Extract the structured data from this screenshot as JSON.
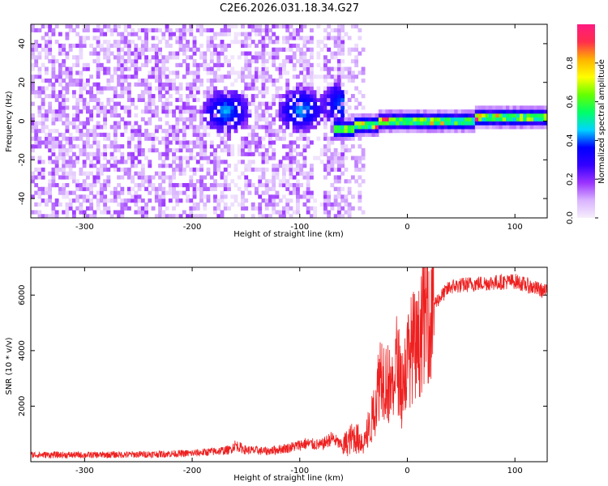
{
  "title": "C2E6.2026.031.18.34.G27",
  "chart_data": [
    {
      "type": "heatmap",
      "name": "spectrogram",
      "xlabel": "Height of straight line (km)",
      "ylabel": "Frequency (Hz)",
      "xlim": [
        -350,
        130
      ],
      "ylim": [
        -50,
        50
      ],
      "xticks": [
        "-300",
        "-200",
        "-100",
        "0",
        "100"
      ],
      "xtick_values": [
        -300,
        -200,
        -100,
        0,
        100
      ],
      "yticks": [
        "-40",
        "-20",
        "0",
        "20",
        "40"
      ],
      "ytick_values": [
        -40,
        -20,
        0,
        20,
        40
      ],
      "colorbar": {
        "label": "Normalized spectral amplitude",
        "range": [
          0,
          1
        ],
        "ticks": [
          "0.0",
          "0.2",
          "0.4",
          "0.6",
          "0.8"
        ],
        "tick_values": [
          0.0,
          0.2,
          0.4,
          0.6,
          0.8
        ],
        "colors": [
          "#f6effc",
          "#d9b3ff",
          "#9a33ff",
          "#3300ff",
          "#0000ff",
          "#00d5ff",
          "#00ff66",
          "#66ff00",
          "#ffff00",
          "#ffb300",
          "#ff2d4c",
          "#ff1a80"
        ]
      },
      "features": {
        "noise_region_x": [
          -350,
          -60
        ],
        "signal_band_center_hz": [
          {
            "x": -65,
            "f": -4
          },
          {
            "x": -50,
            "f": -3
          },
          {
            "x": -30,
            "f": -1
          },
          {
            "x": 0,
            "f": 0
          },
          {
            "x": 60,
            "f": 1
          },
          {
            "x": 130,
            "f": 2
          }
        ],
        "clusters": [
          {
            "x": -170,
            "f": 4
          },
          {
            "x": -100,
            "f": 5
          },
          {
            "x": -60,
            "f": 8
          }
        ],
        "gaps_x": [
          -162,
          -85
        ]
      }
    },
    {
      "type": "line",
      "name": "snr",
      "xlabel": "Height of straight line (km)",
      "ylabel": "SNR (10 * v/v)",
      "xlim": [
        -350,
        130
      ],
      "ylim": [
        0,
        7000
      ],
      "xticks": [
        "-300",
        "-200",
        "-100",
        "0",
        "100"
      ],
      "xtick_values": [
        -300,
        -200,
        -100,
        0,
        100
      ],
      "yticks": [
        "2000",
        "4000",
        "6000"
      ],
      "ytick_values": [
        2000,
        4000,
        6000
      ],
      "color": "#ee2020",
      "series": [
        {
          "name": "SNR",
          "x": [
            -350,
            -300,
            -250,
            -200,
            -165,
            -160,
            -150,
            -130,
            -110,
            -95,
            -80,
            -70,
            -60,
            -50,
            -40,
            -35,
            -30,
            -25,
            -20,
            -15,
            -10,
            -5,
            0,
            5,
            10,
            15,
            20,
            30,
            40,
            60,
            80,
            100,
            115,
            130
          ],
          "y": [
            250,
            240,
            260,
            300,
            420,
            600,
            420,
            380,
            500,
            650,
            600,
            850,
            550,
            900,
            700,
            1200,
            2000,
            3300,
            3000,
            2600,
            3600,
            2800,
            3600,
            4200,
            4000,
            5300,
            5500,
            5900,
            6300,
            6400,
            6450,
            6500,
            6300,
            6100
          ]
        }
      ]
    }
  ]
}
